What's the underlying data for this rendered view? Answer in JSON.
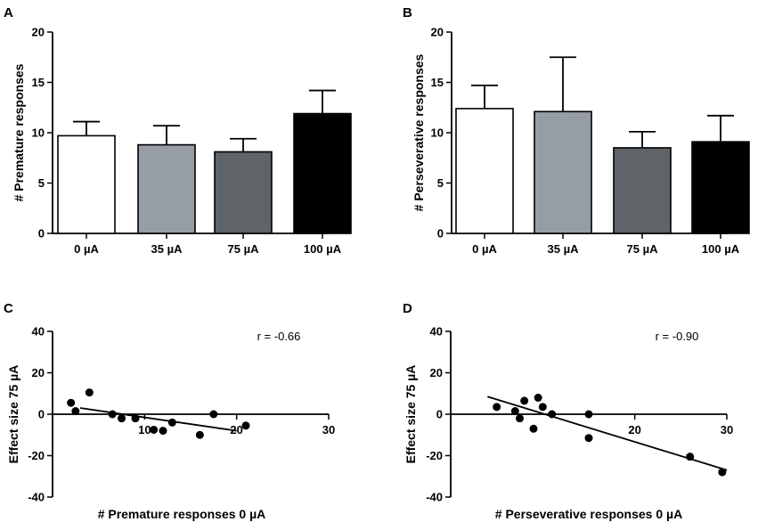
{
  "colors": {
    "axis": "#000000",
    "bar_0uA": "#ffffff",
    "bar_35uA": "#969da4",
    "bar_75uA": "#5e6467",
    "bar_100uA": "#000000",
    "point": "#000000"
  },
  "chart_data": [
    {
      "panel": "A",
      "type": "bar",
      "categories": [
        "0 µA",
        "35 µA",
        "75 µA",
        "100 µA"
      ],
      "values": [
        9.7,
        8.8,
        8.1,
        11.9
      ],
      "errors": [
        1.4,
        1.9,
        1.3,
        2.3
      ],
      "error_bars": "upper",
      "ylabel": "# Premature responses",
      "xlabel": "",
      "ylim": [
        0,
        20
      ],
      "yticks": [
        0,
        5,
        10,
        15,
        20
      ]
    },
    {
      "panel": "B",
      "type": "bar",
      "categories": [
        "0 µA",
        "35 µA",
        "75 µA",
        "100 µA"
      ],
      "values": [
        12.4,
        12.1,
        8.5,
        9.1
      ],
      "errors": [
        2.3,
        5.4,
        1.6,
        2.6
      ],
      "error_bars": "upper",
      "ylabel": "# Perseverative responses",
      "xlabel": "",
      "ylim": [
        0,
        20
      ],
      "yticks": [
        0,
        5,
        10,
        15,
        20
      ]
    },
    {
      "panel": "C",
      "type": "scatter",
      "x": [
        2,
        2.5,
        4,
        6.5,
        7.5,
        9,
        11,
        12,
        13,
        16,
        17.5,
        21
      ],
      "y": [
        5.5,
        1.5,
        10.5,
        0,
        -2,
        -2,
        -7.5,
        -8,
        -4,
        -10,
        0,
        -5.5
      ],
      "regression": {
        "x": [
          3,
          20
        ],
        "y": [
          3,
          -8
        ]
      },
      "annotation": "r = -0.66",
      "xlabel": "# Premature responses 0 µA",
      "ylabel": "Effect size 75 µA",
      "xlim": [
        0,
        30
      ],
      "ylim": [
        -40,
        40
      ],
      "xticks": [
        10,
        20,
        30
      ],
      "xtick_labels": [
        "10",
        "20",
        "30"
      ],
      "yticks": [
        -40,
        -20,
        0,
        20,
        40
      ],
      "ytick_labels": [
        "-40",
        "-20",
        "0",
        "20",
        "40"
      ]
    },
    {
      "panel": "D",
      "type": "scatter",
      "x": [
        5,
        7,
        7.5,
        8,
        9,
        9.5,
        10,
        11,
        15,
        15,
        26,
        29.5
      ],
      "y": [
        3.5,
        1.5,
        -2,
        6.5,
        -7,
        8,
        3.5,
        0,
        0,
        -11.5,
        -20.5,
        -28
      ],
      "regression": {
        "x": [
          4,
          30
        ],
        "y": [
          8.5,
          -27
        ]
      },
      "annotation": "r = -0.90",
      "xlabel": "# Perseverative responses 0 µA",
      "ylabel": "Effect size 75 µA",
      "xlim": [
        0,
        30
      ],
      "ylim": [
        -40,
        40
      ],
      "xticks": [
        20,
        30
      ],
      "xtick_labels": [
        "20",
        "30"
      ],
      "yticks": [
        -40,
        -20,
        0,
        20,
        40
      ],
      "ytick_labels": [
        "-40",
        "-20",
        "0",
        "20",
        "40"
      ]
    }
  ]
}
